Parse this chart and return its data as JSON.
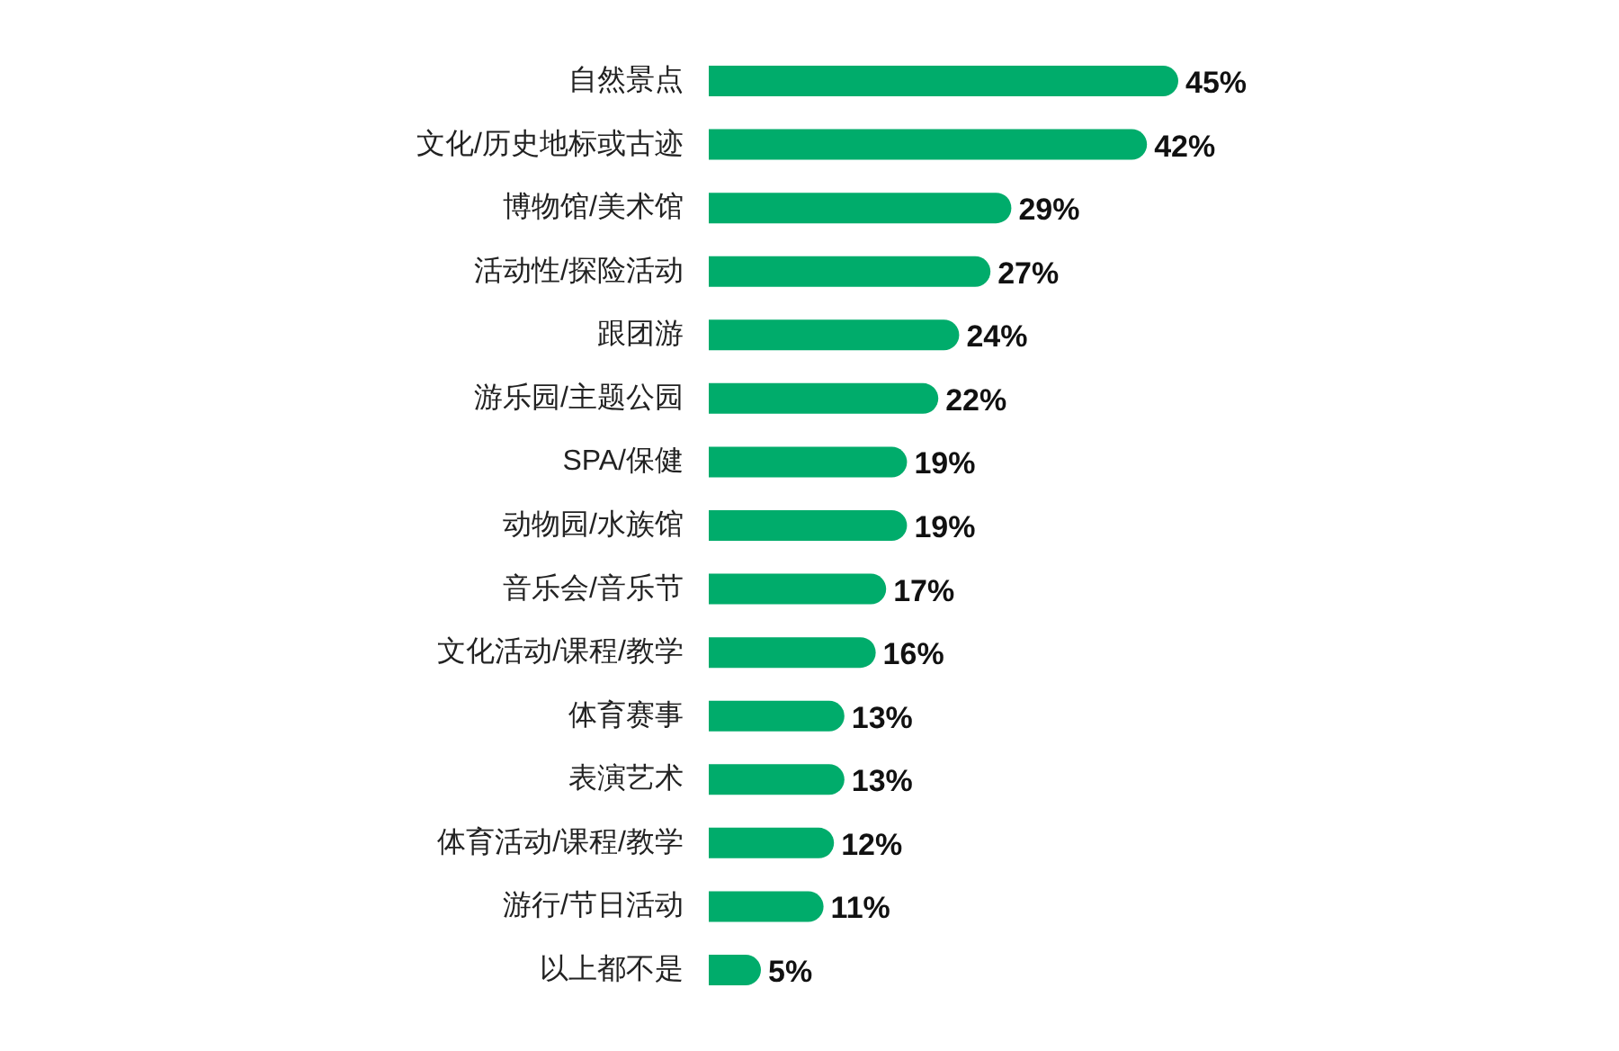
{
  "chart_data": {
    "type": "bar",
    "orientation": "horizontal",
    "categories": [
      "自然景点",
      "文化/历史地标或古迹",
      "博物馆/美术馆",
      "活动性/探险活动",
      "跟团游",
      "游乐园/主题公园",
      "SPA/保健",
      "动物园/水族馆",
      "音乐会/音乐节",
      "文化活动/课程/教学",
      "体育赛事",
      "表演艺术",
      "体育活动/课程/教学",
      "游行/节日活动",
      "以上都不是"
    ],
    "values": [
      45,
      42,
      29,
      27,
      24,
      22,
      19,
      19,
      17,
      16,
      13,
      13,
      12,
      11,
      5
    ],
    "value_labels": [
      "45%",
      "42%",
      "29%",
      "27%",
      "24%",
      "22%",
      "19%",
      "19%",
      "17%",
      "16%",
      "13%",
      "13%",
      "12%",
      "11%",
      "5%"
    ],
    "color": "#00ac6b"
  }
}
